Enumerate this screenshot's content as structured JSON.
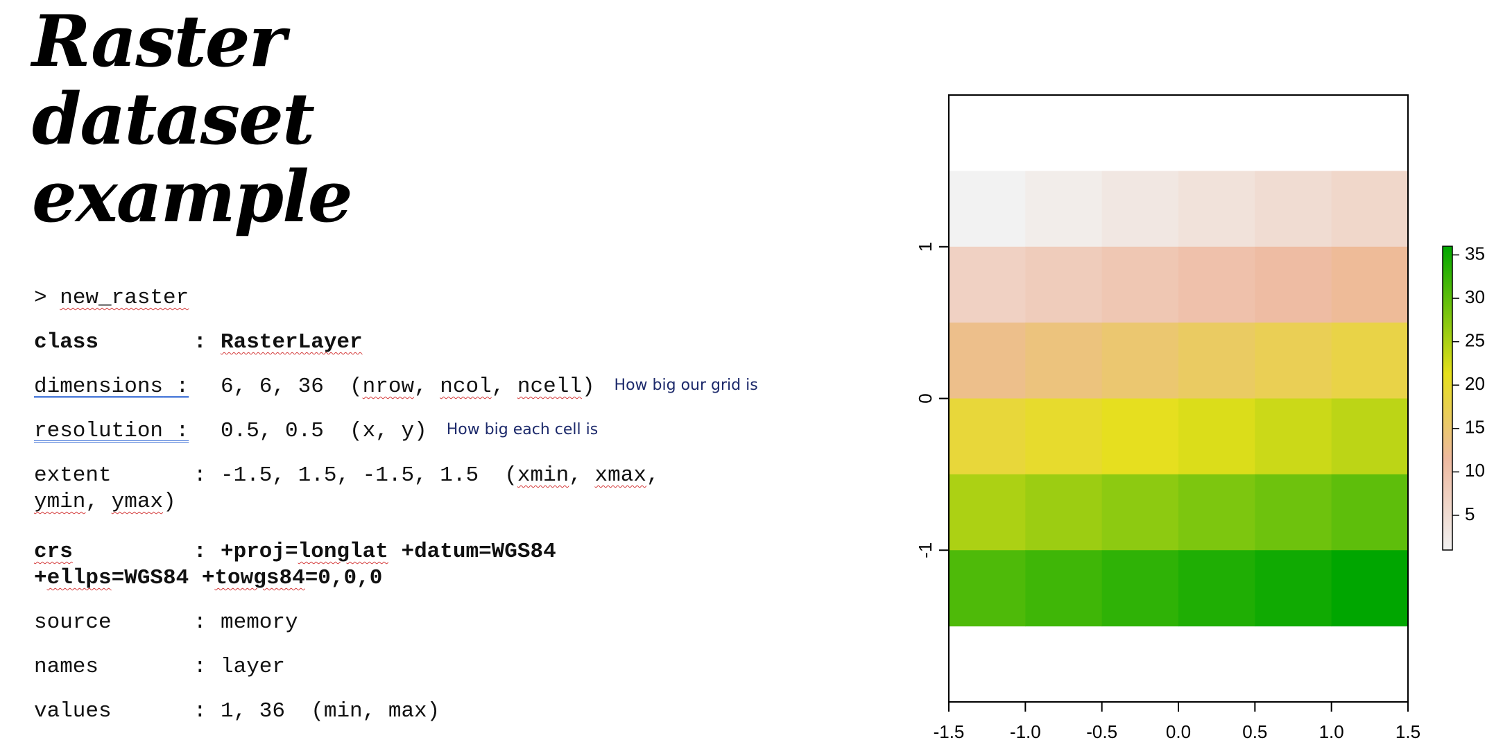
{
  "title_lines": [
    "Raster",
    "dataset",
    "example"
  ],
  "console": {
    "prompt": ">",
    "command": "new_raster",
    "class": {
      "key": "class",
      "value": "RasterLayer"
    },
    "dimensions": {
      "key": "dimensions",
      "value": "6, 6, 36",
      "u1": "nrow",
      "u2": "ncol",
      "u3": "ncell",
      "note": "How big our grid is"
    },
    "resolution": {
      "key": "resolution",
      "value": "0.5, 0.5",
      "u1": "x",
      "u2": "y",
      "note": "How big each cell is"
    },
    "extent": {
      "key": "extent",
      "value": "-1.5, 1.5, -1.5, 1.5",
      "u1": "xmin",
      "u2": "xmax",
      "u3": "ymin",
      "u4": "ymax"
    },
    "crs": {
      "key": "crs",
      "v1": "+proj=",
      "v2": "longlat",
      "v3": " +datum=WGS84",
      "v4": "ellps",
      "v5": "=WGS84 +",
      "v6": "towgs84",
      "v7": "=0,0,0"
    },
    "source": {
      "key": "source",
      "value": "memory"
    },
    "names": {
      "key": "names",
      "value": "layer"
    },
    "values": {
      "key": "values",
      "value": "1, 36",
      "unit": "(min, max)"
    }
  },
  "chart_data": {
    "type": "heatmap",
    "nrow": 6,
    "ncol": 6,
    "values": [
      1,
      2,
      3,
      4,
      5,
      6,
      7,
      8,
      9,
      10,
      11,
      12,
      13,
      14,
      15,
      16,
      17,
      18,
      19,
      20,
      21,
      22,
      23,
      24,
      25,
      26,
      27,
      28,
      29,
      30,
      31,
      32,
      33,
      34,
      35,
      36
    ],
    "x_extent": [
      -1.5,
      1.5
    ],
    "y_extent": [
      -1.5,
      1.5
    ],
    "xlim": [
      -1.5,
      1.5
    ],
    "ylim": [
      -2,
      2
    ],
    "x_ticks": [
      "-1.5",
      "-1.0",
      "-0.5",
      "0.0",
      "0.5",
      "1.0",
      "1.5"
    ],
    "x_tick_values": [
      -1.5,
      -1.0,
      -0.5,
      0.0,
      0.5,
      1.0,
      1.5
    ],
    "y_ticks": [
      "-1",
      "0",
      "1"
    ],
    "y_tick_values": [
      -1,
      0,
      1
    ],
    "legend": {
      "range": [
        1,
        36
      ],
      "ticks": [
        "5",
        "10",
        "15",
        "20",
        "25",
        "30",
        "35"
      ],
      "tick_values": [
        5,
        10,
        15,
        20,
        25,
        30,
        35
      ],
      "placement": "right"
    },
    "colors": {
      "low": "#f2f2f2",
      "mid1": "#eeb99f",
      "mid2": "#e6e01b",
      "high": "#00a600"
    }
  }
}
